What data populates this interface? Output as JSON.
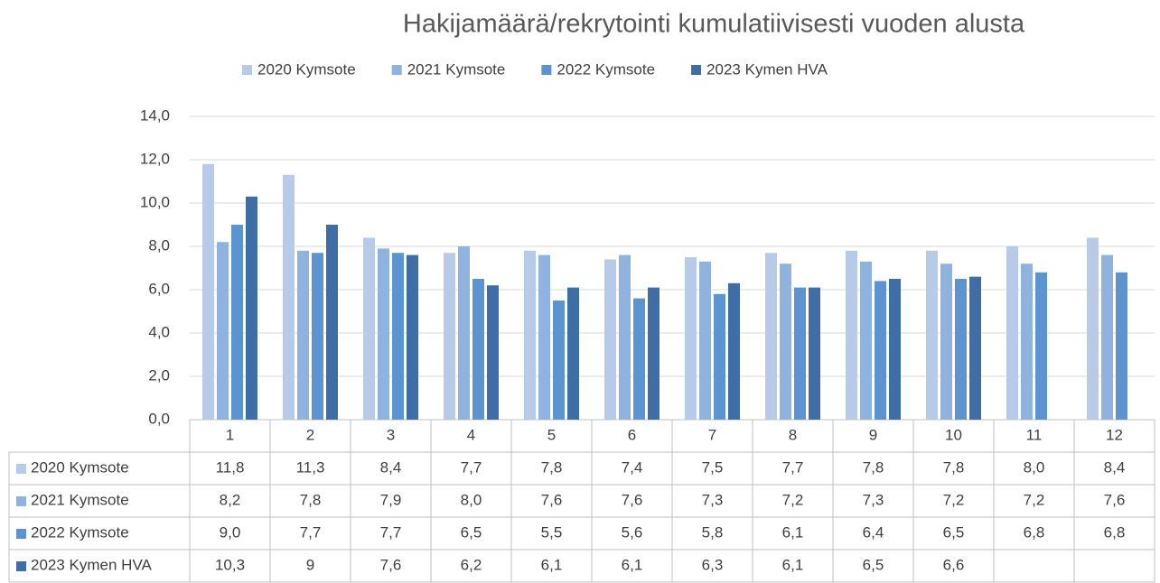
{
  "chart_data": {
    "type": "bar",
    "title": "Hakijamäärä/rekrytointi kumulatiivisesti vuoden alusta",
    "categories": [
      "1",
      "2",
      "3",
      "4",
      "5",
      "6",
      "7",
      "8",
      "9",
      "10",
      "11",
      "12"
    ],
    "series": [
      {
        "name": "2020 Kymsote",
        "color": "#b7cbe8",
        "values": [
          11.8,
          11.3,
          8.4,
          7.7,
          7.8,
          7.4,
          7.5,
          7.7,
          7.8,
          7.8,
          8.0,
          8.4
        ],
        "value_labels": [
          "11,8",
          "11,3",
          "8,4",
          "7,7",
          "7,8",
          "7,4",
          "7,5",
          "7,7",
          "7,8",
          "7,8",
          "8,0",
          "8,4"
        ]
      },
      {
        "name": "2021 Kymsote",
        "color": "#8fb2de",
        "values": [
          8.2,
          7.8,
          7.9,
          8.0,
          7.6,
          7.6,
          7.3,
          7.2,
          7.3,
          7.2,
          7.2,
          7.6
        ],
        "value_labels": [
          "8,2",
          "7,8",
          "7,9",
          "8,0",
          "7,6",
          "7,6",
          "7,3",
          "7,2",
          "7,3",
          "7,2",
          "7,2",
          "7,6"
        ]
      },
      {
        "name": "2022 Kymsote",
        "color": "#5b94d0",
        "values": [
          9.0,
          7.7,
          7.7,
          6.5,
          5.5,
          5.6,
          5.8,
          6.1,
          6.4,
          6.5,
          6.8,
          6.8
        ],
        "value_labels": [
          "9,0",
          "7,7",
          "7,7",
          "6,5",
          "5,5",
          "5,6",
          "5,8",
          "6,1",
          "6,4",
          "6,5",
          "6,8",
          "6,8"
        ]
      },
      {
        "name": "2023 Kymen HVA",
        "color": "#3f6ea6",
        "values": [
          10.3,
          9,
          7.6,
          6.2,
          6.1,
          6.1,
          6.3,
          6.1,
          6.5,
          6.6,
          null,
          null
        ],
        "value_labels": [
          "10,3",
          "9",
          "7,6",
          "6,2",
          "6,1",
          "6,1",
          "6,3",
          "6,1",
          "6,5",
          "6,6",
          null,
          null
        ]
      }
    ],
    "ylim": [
      0,
      14
    ],
    "yticks": [
      {
        "value": 0,
        "label": "0,0"
      },
      {
        "value": 2,
        "label": "2,0"
      },
      {
        "value": 4,
        "label": "4,0"
      },
      {
        "value": 6,
        "label": "6,0"
      },
      {
        "value": 8,
        "label": "8,0"
      },
      {
        "value": 10,
        "label": "10,0"
      },
      {
        "value": 12,
        "label": "12,0"
      },
      {
        "value": 14,
        "label": "14,0"
      }
    ],
    "grid": true,
    "legend": "top"
  }
}
